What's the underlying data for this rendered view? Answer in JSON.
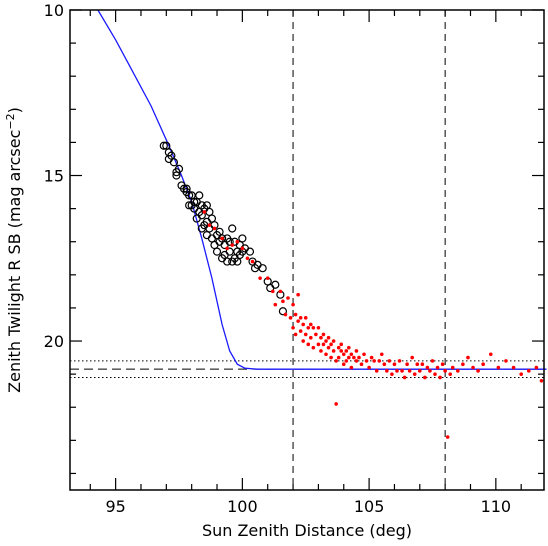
{
  "chart_data": {
    "type": "scatter",
    "title": "",
    "xlabel": "Sun Zenith Distance (deg)",
    "ylabel_main": "Zenith Twilight R SB (mag arcsec",
    "ylabel_sup": "−2",
    "ylabel_close": ")",
    "xlim": [
      93.2,
      111.9
    ],
    "ylim": [
      10,
      24.5
    ],
    "y_inverted": true,
    "grid": false,
    "x_ticks": [
      95,
      100,
      105,
      110
    ],
    "x_tick_labels": [
      "95",
      "100",
      "105",
      "110"
    ],
    "y_ticks": [
      10,
      15,
      20
    ],
    "y_tick_labels": [
      "10",
      "15",
      "20"
    ],
    "reference_lines": {
      "vertical_dashed": [
        102,
        108
      ],
      "horizontal_dashed": 20.85,
      "horizontal_dotted": [
        20.6,
        21.1
      ]
    },
    "colors": {
      "model": "#1a1aff",
      "red": "#ff0000",
      "black": "#000000",
      "axes": "#000000"
    },
    "series": [
      {
        "type": "line",
        "points": [
          [
            94.3,
            10
          ],
          [
            95,
            10.9
          ],
          [
            95.7,
            11.9
          ],
          [
            96.4,
            12.9
          ],
          [
            97.1,
            14.1
          ],
          [
            97.6,
            15.0
          ],
          [
            98,
            15.8
          ],
          [
            98.4,
            16.9
          ],
          [
            98.8,
            18.1
          ],
          [
            99.2,
            19.5
          ],
          [
            99.5,
            20.3
          ],
          [
            99.8,
            20.7
          ],
          [
            100.1,
            20.82
          ],
          [
            100.6,
            20.85
          ],
          [
            101,
            20.85
          ],
          [
            112,
            20.85
          ]
        ]
      },
      {
        "type": "open-circles",
        "points": [
          [
            96.9,
            14.1
          ],
          [
            97.0,
            14.1
          ],
          [
            97.1,
            14.3
          ],
          [
            97.2,
            14.4
          ],
          [
            97.1,
            14.5
          ],
          [
            97.3,
            14.6
          ],
          [
            97.4,
            14.9
          ],
          [
            97.4,
            15.0
          ],
          [
            97.5,
            14.8
          ],
          [
            97.6,
            15.3
          ],
          [
            97.7,
            15.4
          ],
          [
            97.8,
            15.5
          ],
          [
            97.8,
            15.4
          ],
          [
            97.9,
            15.6
          ],
          [
            97.9,
            15.9
          ],
          [
            98.0,
            15.6
          ],
          [
            98.0,
            15.9
          ],
          [
            98.1,
            15.8
          ],
          [
            98.1,
            16.0
          ],
          [
            98.2,
            16.3
          ],
          [
            98.2,
            15.8
          ],
          [
            98.3,
            16.1
          ],
          [
            98.3,
            15.6
          ],
          [
            98.4,
            16.2
          ],
          [
            98.4,
            16.6
          ],
          [
            98.4,
            15.9
          ],
          [
            98.5,
            16.0
          ],
          [
            98.5,
            16.5
          ],
          [
            98.6,
            15.9
          ],
          [
            98.6,
            16.4
          ],
          [
            98.6,
            16.8
          ],
          [
            98.7,
            16.1
          ],
          [
            98.7,
            16.6
          ],
          [
            98.8,
            16.3
          ],
          [
            98.8,
            16.9
          ],
          [
            98.9,
            16.5
          ],
          [
            98.9,
            17.1
          ],
          [
            99.0,
            16.8
          ],
          [
            99.0,
            17.3
          ],
          [
            99.1,
            16.7
          ],
          [
            99.1,
            17.0
          ],
          [
            99.2,
            17.5
          ],
          [
            99.2,
            16.9
          ],
          [
            99.3,
            17.1
          ],
          [
            99.3,
            17.4
          ],
          [
            99.4,
            16.9
          ],
          [
            99.4,
            17.6
          ],
          [
            99.5,
            17.0
          ],
          [
            99.5,
            17.3
          ],
          [
            99.6,
            17.6
          ],
          [
            99.6,
            16.6
          ],
          [
            99.7,
            17.5
          ],
          [
            99.7,
            17.0
          ],
          [
            99.8,
            17.3
          ],
          [
            99.8,
            17.6
          ],
          [
            99.9,
            17.1
          ],
          [
            99.9,
            17.4
          ],
          [
            100.0,
            17.3
          ],
          [
            100.0,
            16.9
          ],
          [
            100.1,
            17.2
          ],
          [
            100.3,
            17.3
          ],
          [
            100.4,
            17.6
          ],
          [
            100.5,
            17.8
          ],
          [
            100.6,
            17.7
          ],
          [
            100.8,
            17.8
          ],
          [
            101.0,
            18.2
          ],
          [
            101.1,
            18.4
          ],
          [
            101.3,
            18.3
          ],
          [
            101.5,
            18.6
          ],
          [
            101.6,
            19.1
          ]
        ]
      },
      {
        "type": "red-dots",
        "points": [
          [
            98.5,
            16.1
          ],
          [
            98.7,
            16.5
          ],
          [
            98.9,
            16.6
          ],
          [
            99.2,
            16.9
          ],
          [
            99.4,
            17.2
          ],
          [
            99.6,
            17.1
          ],
          [
            99.8,
            17.0
          ],
          [
            100.0,
            17.2
          ],
          [
            100.2,
            17.5
          ],
          [
            100.4,
            17.6
          ],
          [
            100.7,
            18.1
          ],
          [
            101.0,
            18.1
          ],
          [
            101.2,
            18.5
          ],
          [
            101.3,
            18.9
          ],
          [
            101.5,
            18.5
          ],
          [
            101.6,
            18.8
          ],
          [
            101.7,
            19.2
          ],
          [
            101.8,
            18.7
          ],
          [
            101.9,
            19.3
          ],
          [
            102.0,
            18.9
          ],
          [
            102.0,
            19.6
          ],
          [
            102.1,
            19.2
          ],
          [
            102.1,
            19.8
          ],
          [
            102.2,
            19.4
          ],
          [
            102.2,
            18.6
          ],
          [
            102.3,
            19.7
          ],
          [
            102.3,
            19.3
          ],
          [
            102.4,
            19.5
          ],
          [
            102.4,
            20.0
          ],
          [
            102.5,
            19.3
          ],
          [
            102.5,
            19.8
          ],
          [
            102.6,
            19.6
          ],
          [
            102.6,
            20.1
          ],
          [
            102.7,
            19.5
          ],
          [
            102.7,
            19.9
          ],
          [
            102.8,
            19.6
          ],
          [
            102.8,
            20.2
          ],
          [
            102.9,
            19.8
          ],
          [
            103.0,
            19.6
          ],
          [
            103.0,
            20.1
          ],
          [
            103.1,
            19.9
          ],
          [
            103.1,
            20.3
          ],
          [
            103.2,
            19.8
          ],
          [
            103.2,
            20.1
          ],
          [
            103.3,
            20.0
          ],
          [
            103.3,
            20.4
          ],
          [
            103.4,
            19.9
          ],
          [
            103.4,
            20.2
          ],
          [
            103.5,
            20.1
          ],
          [
            103.5,
            20.5
          ],
          [
            103.6,
            20.0
          ],
          [
            103.6,
            20.3
          ],
          [
            103.7,
            20.6
          ],
          [
            103.7,
            21.9
          ],
          [
            103.8,
            20.2
          ],
          [
            103.8,
            20.5
          ],
          [
            103.9,
            20.3
          ],
          [
            103.9,
            20.1
          ],
          [
            104.0,
            20.4
          ],
          [
            104.0,
            20.7
          ],
          [
            104.1,
            20.3
          ],
          [
            104.1,
            20.6
          ],
          [
            104.2,
            20.2
          ],
          [
            104.2,
            20.5
          ],
          [
            104.3,
            20.4
          ],
          [
            104.3,
            20.8
          ],
          [
            104.4,
            20.5
          ],
          [
            104.5,
            20.3
          ],
          [
            104.5,
            20.6
          ],
          [
            104.6,
            20.5
          ],
          [
            104.7,
            20.7
          ],
          [
            104.8,
            20.4
          ],
          [
            104.9,
            20.6
          ],
          [
            105.0,
            20.8
          ],
          [
            105.1,
            20.5
          ],
          [
            105.2,
            20.6
          ],
          [
            105.3,
            20.9
          ],
          [
            105.4,
            20.6
          ],
          [
            105.5,
            20.4
          ],
          [
            105.6,
            20.7
          ],
          [
            105.7,
            20.9
          ],
          [
            105.8,
            20.6
          ],
          [
            105.9,
            21.0
          ],
          [
            106.0,
            20.7
          ],
          [
            106.1,
            20.9
          ],
          [
            106.2,
            20.6
          ],
          [
            106.3,
            20.9
          ],
          [
            106.4,
            21.1
          ],
          [
            106.5,
            20.7
          ],
          [
            106.6,
            20.9
          ],
          [
            106.7,
            20.5
          ],
          [
            106.8,
            21.0
          ],
          [
            106.9,
            20.7
          ],
          [
            107.0,
            20.9
          ],
          [
            107.1,
            20.7
          ],
          [
            107.2,
            21.1
          ],
          [
            107.3,
            20.8
          ],
          [
            107.4,
            20.9
          ],
          [
            107.5,
            20.6
          ],
          [
            107.6,
            21.0
          ],
          [
            107.7,
            20.8
          ],
          [
            107.8,
            21.1
          ],
          [
            107.9,
            20.7
          ],
          [
            108.0,
            20.9
          ],
          [
            108.1,
            22.9
          ],
          [
            108.2,
            21.0
          ],
          [
            108.3,
            20.8
          ],
          [
            108.5,
            20.9
          ],
          [
            108.7,
            20.7
          ],
          [
            108.9,
            20.5
          ],
          [
            109.1,
            20.8
          ],
          [
            109.3,
            20.9
          ],
          [
            109.5,
            20.7
          ],
          [
            109.8,
            20.4
          ],
          [
            110.1,
            20.8
          ],
          [
            110.4,
            20.6
          ],
          [
            110.7,
            20.8
          ],
          [
            111.0,
            21.0
          ],
          [
            111.3,
            20.9
          ],
          [
            111.6,
            20.8
          ],
          [
            111.8,
            21.2
          ]
        ]
      }
    ]
  }
}
